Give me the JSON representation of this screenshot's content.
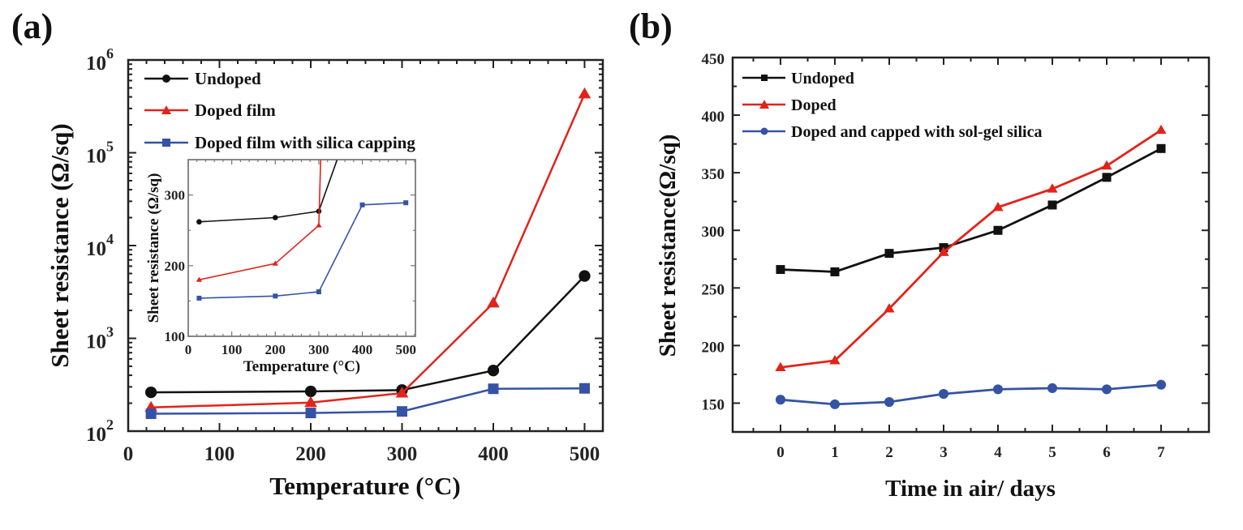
{
  "colors": {
    "undoped": "#111111",
    "doped": "#e2231a",
    "capped": "#3553a5"
  },
  "chart_data": [
    {
      "id": "a",
      "panel_label": "(a)",
      "type": "line",
      "title": "",
      "xlabel": "Temperature (°C)",
      "ylabel": "Sheet resistance (Ω/sq)",
      "yscale": "log",
      "xlim": [
        0,
        520
      ],
      "ylim": [
        100,
        1000000
      ],
      "xticks": [
        0,
        100,
        200,
        300,
        400,
        500
      ],
      "xtick_labels": [
        "0",
        "100",
        "200",
        "300",
        "400",
        "500"
      ],
      "yticks": [
        100,
        1000,
        10000,
        100000,
        1000000
      ],
      "ytick_labels": [
        {
          "base": "10",
          "exp": "2"
        },
        {
          "base": "10",
          "exp": "3"
        },
        {
          "base": "10",
          "exp": "4"
        },
        {
          "base": "10",
          "exp": "5"
        },
        {
          "base": "10",
          "exp": "6"
        }
      ],
      "legend_position": "top-left",
      "grid": false,
      "x": [
        25,
        200,
        300,
        400,
        500
      ],
      "series": [
        {
          "key": "undoped",
          "name": "Undoped",
          "marker": "circle",
          "values": [
            262,
            268,
            277,
            450,
            4700
          ]
        },
        {
          "key": "doped",
          "name": "Doped film",
          "marker": "triangle",
          "values": [
            180,
            203,
            257,
            2400,
            430000
          ]
        },
        {
          "key": "capped",
          "name": "Doped film with silica capping",
          "marker": "square",
          "values": [
            154,
            157,
            163,
            286,
            289
          ]
        }
      ],
      "inset": {
        "type": "line",
        "xlabel": "Temperature (°C)",
        "ylabel": "Sheet resistance (Ω/sq)",
        "xlim": [
          0,
          522
        ],
        "ylim": [
          100,
          350
        ],
        "xticks": [
          0,
          100,
          200,
          300,
          400,
          500
        ],
        "xtick_labels": [
          "0",
          "100",
          "200",
          "300",
          "400",
          "500"
        ],
        "yticks": [
          100,
          200,
          300
        ],
        "ytick_labels": [
          "100",
          "200",
          "300"
        ],
        "grid": false,
        "x": [
          25,
          200,
          300,
          400,
          500
        ],
        "series": [
          {
            "key": "undoped",
            "name": "Undoped",
            "marker": "circle",
            "values": [
              262,
              268,
              277,
              450,
              4700
            ]
          },
          {
            "key": "doped",
            "name": "Doped film",
            "marker": "triangle",
            "values": [
              180,
              203,
              257,
              2400,
              430000
            ]
          },
          {
            "key": "capped",
            "name": "Doped film with silica capping",
            "marker": "square",
            "values": [
              154,
              157,
              163,
              286,
              289
            ]
          }
        ]
      }
    },
    {
      "id": "b",
      "panel_label": "(b)",
      "type": "line",
      "title": "",
      "xlabel": "Time in air/ days",
      "ylabel": "Sheet resistance(Ω/sq)",
      "yscale": "linear",
      "xlim": [
        -0.88,
        7.88
      ],
      "ylim": [
        125,
        450
      ],
      "xticks": [
        0,
        1,
        2,
        3,
        4,
        5,
        6,
        7
      ],
      "xtick_labels": [
        "0",
        "1",
        "2",
        "3",
        "4",
        "5",
        "6",
        "7"
      ],
      "yticks": [
        150,
        200,
        250,
        300,
        350,
        400,
        450
      ],
      "ytick_labels": [
        "150",
        "200",
        "250",
        "300",
        "350",
        "400",
        "450"
      ],
      "legend_position": "top-left",
      "grid": false,
      "x": [
        0,
        1,
        2,
        3,
        4,
        5,
        6,
        7
      ],
      "series": [
        {
          "key": "undoped",
          "name": "Undoped",
          "marker": "square",
          "values": [
            266,
            264,
            280,
            285,
            300,
            322,
            346,
            371
          ]
        },
        {
          "key": "doped",
          "name": "Doped",
          "marker": "triangle",
          "values": [
            181,
            187,
            232,
            281,
            320,
            336,
            356,
            387
          ]
        },
        {
          "key": "capped",
          "name": "Doped and capped with sol-gel silica",
          "marker": "circle",
          "values": [
            153,
            149,
            151,
            158,
            162,
            163,
            162,
            166
          ]
        }
      ]
    }
  ]
}
